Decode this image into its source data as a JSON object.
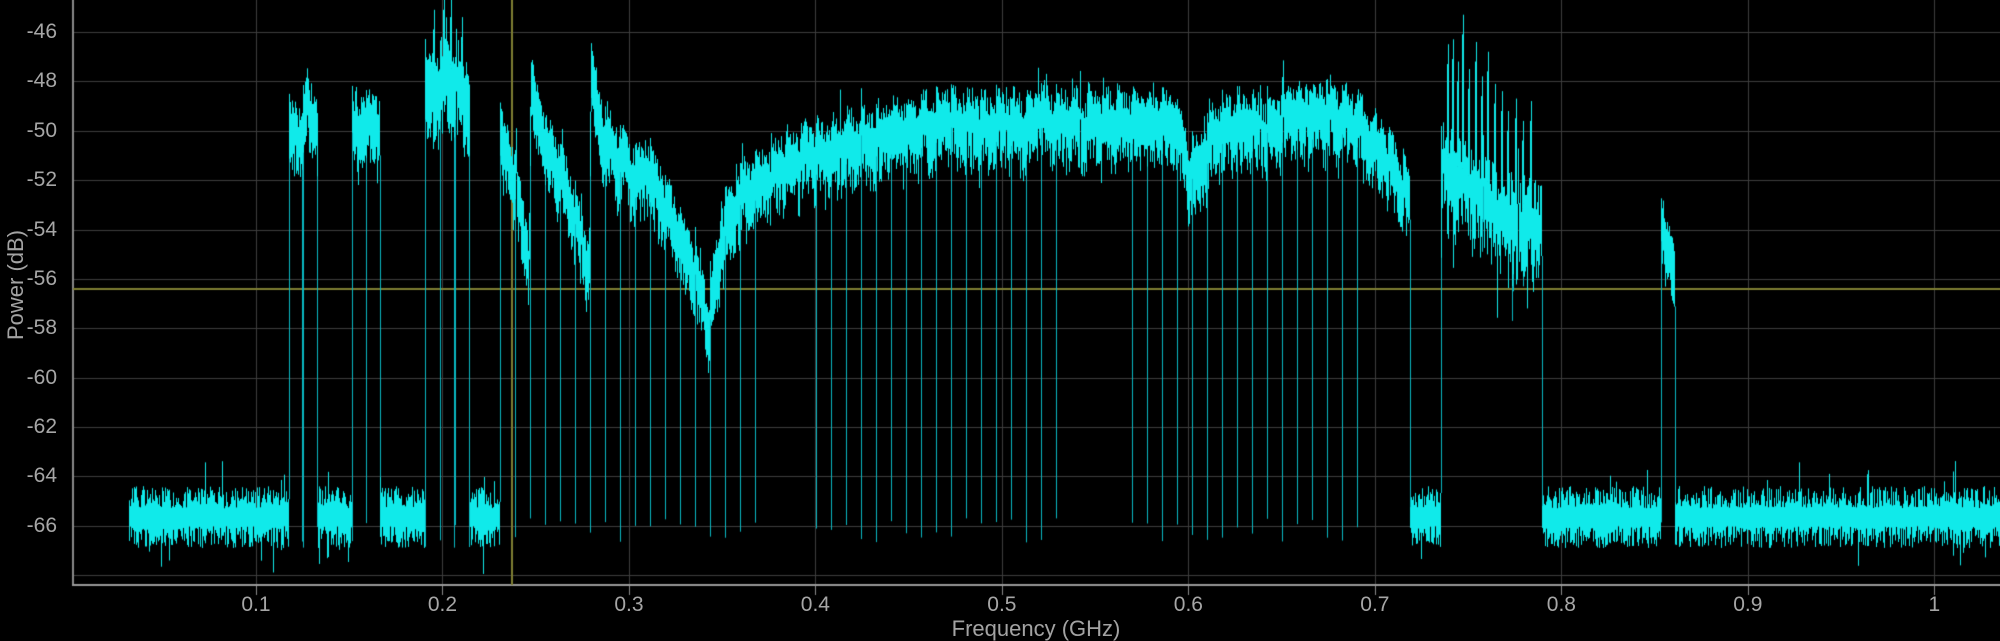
{
  "figure": {
    "background": "#000000",
    "trace_color": "#10eaea",
    "trace_dim_color": "#0ab9c3",
    "grid_color": "#3e3e3e",
    "axis_line_color": "#9a9a9a",
    "left_axis_color": "#8a8a8a",
    "tick_label_color": "#a6a6a6",
    "cursor_color": "#7f7f33"
  },
  "chart_data": {
    "type": "line",
    "title": "",
    "xlabel": "Frequency (GHz)",
    "ylabel": "Power (dB)",
    "xlim": [
      0.0019,
      1.0352
    ],
    "ylim": [
      -68.4,
      -44.7
    ],
    "grid": true,
    "x_ticks": [
      {
        "value": 0.1,
        "label": "0.1"
      },
      {
        "value": 0.2,
        "label": "0.2"
      },
      {
        "value": 0.3,
        "label": "0.3"
      },
      {
        "value": 0.4,
        "label": "0.4"
      },
      {
        "value": 0.5,
        "label": "0.5"
      },
      {
        "value": 0.6,
        "label": "0.6"
      },
      {
        "value": 0.7,
        "label": "0.7"
      },
      {
        "value": 0.8,
        "label": "0.8"
      },
      {
        "value": 0.9,
        "label": "0.9"
      },
      {
        "value": 1.0,
        "label": "1"
      }
    ],
    "y_ticks": [
      {
        "value": -46,
        "label": "-46"
      },
      {
        "value": -48,
        "label": "-48"
      },
      {
        "value": -50,
        "label": "-50"
      },
      {
        "value": -52,
        "label": "-52"
      },
      {
        "value": -54,
        "label": "-54"
      },
      {
        "value": -56,
        "label": "-56"
      },
      {
        "value": -58,
        "label": "-58"
      },
      {
        "value": -60,
        "label": "-60"
      },
      {
        "value": -62,
        "label": "-62"
      },
      {
        "value": -64,
        "label": "-64"
      },
      {
        "value": -66,
        "label": "-66"
      }
    ],
    "y_gridlines": [
      -46,
      -48,
      -50,
      -52,
      -54,
      -56,
      -58,
      -60,
      -62,
      -64,
      -66,
      -68
    ],
    "cursor": {
      "freq_GHz": 0.2375,
      "power_dB": -56.4
    },
    "noise_floor_dB": -65.6,
    "channel_spacing_GHz": 0.00807,
    "data_start_GHz": 0.0314,
    "data_end_GHz": 1.0352,
    "segments": [
      {
        "kind": "noise",
        "f0": 0.0314,
        "f1": 0.1172
      },
      {
        "kind": "channels",
        "f0": 0.1172,
        "spacing": 0.0078,
        "levels": [
          -49.3,
          -48.4
        ],
        "fuzz": 1.7
      },
      {
        "kind": "noise",
        "f0": 0.1328,
        "f1": 0.1515
      },
      {
        "kind": "channels",
        "f0": 0.1515,
        "spacing": 0.0075,
        "levels": [
          -49.0,
          -48.9
        ],
        "fuzz": 1.7
      },
      {
        "kind": "noise",
        "f0": 0.1665,
        "f1": 0.1906
      },
      {
        "kind": "channels",
        "f0": 0.1906,
        "spacing": 0.008,
        "levels": [
          -47.0,
          -46.8,
          -47.4
        ],
        "fuzz": 2.3,
        "spikes_up": [
          [
            0.1948,
            -45.9
          ],
          [
            0.2002,
            -45.1
          ],
          [
            0.204,
            -45.4
          ],
          [
            0.2098,
            -46.2
          ]
        ]
      },
      {
        "kind": "noise",
        "f0": 0.2146,
        "f1": 0.2304
      },
      {
        "kind": "comb",
        "f0": 0.2304,
        "f1": 0.7188,
        "notch_depth_dB": -66.0,
        "envelope": [
          [
            0.2304,
            -49.3
          ],
          [
            0.2389,
            -51.0
          ],
          [
            0.2462,
            -54.6
          ],
          [
            0.2472,
            -47.4
          ],
          [
            0.255,
            -49.6
          ],
          [
            0.263,
            -50.8
          ],
          [
            0.27,
            -52.2
          ],
          [
            0.2784,
            -54.8
          ],
          [
            0.2794,
            -47.1
          ],
          [
            0.287,
            -49.4
          ],
          [
            0.2952,
            -50.3
          ],
          [
            0.303,
            -50.9
          ],
          [
            0.31,
            -50.6
          ],
          [
            0.318,
            -51.9
          ],
          [
            0.3273,
            -53.4
          ],
          [
            0.336,
            -55.2
          ],
          [
            0.3424,
            -56.9
          ],
          [
            0.348,
            -54.0
          ],
          [
            0.3515,
            -52.9
          ],
          [
            0.3595,
            -51.8
          ],
          [
            0.368,
            -51.2
          ],
          [
            0.3756,
            -50.9
          ],
          [
            0.385,
            -50.4
          ],
          [
            0.3917,
            -50.2
          ],
          [
            0.405,
            -49.9
          ],
          [
            0.4131,
            -49.7
          ],
          [
            0.425,
            -49.5
          ],
          [
            0.4345,
            -49.3
          ],
          [
            0.445,
            -49.0
          ],
          [
            0.456,
            -48.9
          ],
          [
            0.466,
            -48.6
          ],
          [
            0.4721,
            -48.7
          ],
          [
            0.48,
            -49.0
          ],
          [
            0.4882,
            -48.8
          ],
          [
            0.495,
            -49.0
          ],
          [
            0.5042,
            -48.7
          ],
          [
            0.512,
            -48.9
          ],
          [
            0.5203,
            -48.5
          ],
          [
            0.528,
            -48.8
          ],
          [
            0.5364,
            -48.6
          ],
          [
            0.545,
            -48.8
          ],
          [
            0.5525,
            -48.5
          ],
          [
            0.56,
            -48.8
          ],
          [
            0.5686,
            -48.6
          ],
          [
            0.577,
            -48.9
          ],
          [
            0.5847,
            -48.6
          ],
          [
            0.59,
            -48.8
          ],
          [
            0.5954,
            -49.1
          ],
          [
            0.6008,
            -50.9
          ],
          [
            0.6062,
            -50.6
          ],
          [
            0.6115,
            -49.3
          ],
          [
            0.62,
            -48.9
          ],
          [
            0.6276,
            -48.9
          ],
          [
            0.635,
            -49.1
          ],
          [
            0.6437,
            -48.9
          ],
          [
            0.65,
            -48.6
          ],
          [
            0.6598,
            -48.4
          ],
          [
            0.668,
            -48.5
          ],
          [
            0.6759,
            -48.4
          ],
          [
            0.683,
            -48.6
          ],
          [
            0.6893,
            -48.8
          ],
          [
            0.696,
            -49.3
          ],
          [
            0.7027,
            -49.9
          ],
          [
            0.709,
            -50.6
          ],
          [
            0.7134,
            -51.2
          ],
          [
            0.7188,
            -51.6
          ]
        ]
      },
      {
        "kind": "noise",
        "f0": 0.7188,
        "f1": 0.735
      },
      {
        "kind": "spiky",
        "f0": 0.735,
        "f1": 0.7895,
        "base": [
          [
            0.735,
            -50.4
          ],
          [
            0.745,
            -50.8
          ],
          [
            0.754,
            -51.3
          ],
          [
            0.763,
            -51.9
          ],
          [
            0.772,
            -52.3
          ],
          [
            0.781,
            -52.6
          ],
          [
            0.7895,
            -52.8
          ]
        ],
        "spikes_up": [
          [
            0.7386,
            -47.3
          ],
          [
            0.7413,
            -47.1
          ],
          [
            0.744,
            -48.0
          ],
          [
            0.7467,
            -46.1
          ],
          [
            0.75,
            -48.3
          ],
          [
            0.7537,
            -47.2
          ],
          [
            0.757,
            -48.6
          ],
          [
            0.7601,
            -47.6
          ],
          [
            0.764,
            -48.9
          ],
          [
            0.7676,
            -49.2
          ],
          [
            0.771,
            -50.0
          ],
          [
            0.7751,
            -49.5
          ],
          [
            0.779,
            -50.4
          ],
          [
            0.7832,
            -49.6
          ]
        ],
        "spikes_down": [
          [
            0.7574,
            -54.9
          ],
          [
            0.7708,
            -54.0
          ],
          [
            0.7735,
            -57.7
          ],
          [
            0.7794,
            -56.3
          ]
        ]
      },
      {
        "kind": "noise",
        "f0": 0.7895,
        "f1": 0.8534
      },
      {
        "kind": "comb",
        "f0": 0.8534,
        "f1": 0.8609,
        "notch_depth_dB": -66.0,
        "envelope": [
          [
            0.8534,
            -53.2
          ],
          [
            0.8554,
            -53.6
          ],
          [
            0.8574,
            -53.9
          ],
          [
            0.8609,
            -54.7
          ]
        ]
      },
      {
        "kind": "noise",
        "f0": 0.8609,
        "f1": 1.0352
      }
    ]
  }
}
